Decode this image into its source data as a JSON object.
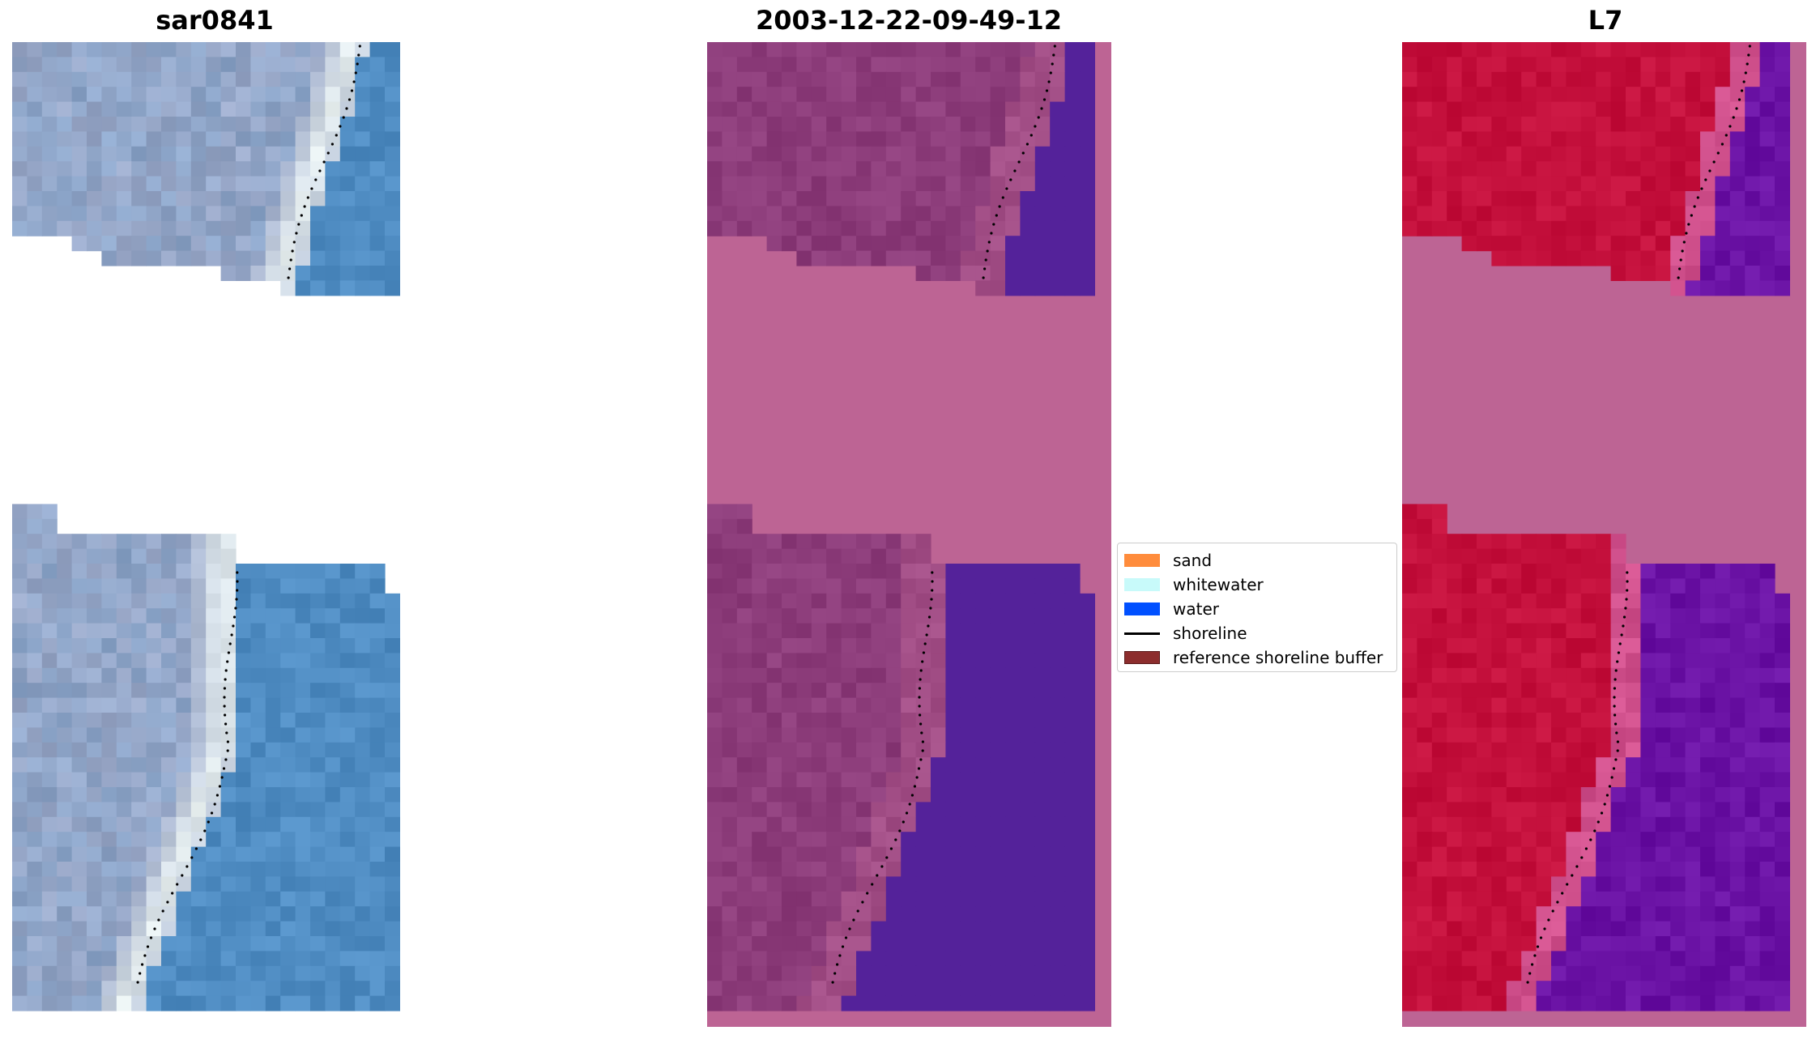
{
  "panels": [
    {
      "title": "sar0841",
      "variant": "rgb"
    },
    {
      "title": "2003-12-22-09-49-12",
      "variant": "classified"
    },
    {
      "title": "L7",
      "variant": "index"
    }
  ],
  "legend": {
    "items": [
      {
        "label": "sand",
        "color": "#ff8c3c",
        "kind": "patch"
      },
      {
        "label": "whitewater",
        "color": "#c8fafa",
        "kind": "patch"
      },
      {
        "label": "water",
        "color": "#0050ff",
        "kind": "patch"
      },
      {
        "label": "shoreline",
        "color": "#000000",
        "kind": "line"
      },
      {
        "label": "reference shoreline buffer",
        "color": "#8c2d2d",
        "kind": "patch"
      }
    ]
  },
  "colors": {
    "rgb_land": "#9aa8c8",
    "rgb_white": "#e8f0f0",
    "rgb_water": "#4f8cc2",
    "class_land": "#8c3c7a",
    "class_water": "#54229a",
    "class_buffer": "#bd6494",
    "index_land": "#c4103c",
    "index_water": "#6a12a4",
    "index_transition": "#d0508c",
    "index_buffer": "#bd6494"
  }
}
